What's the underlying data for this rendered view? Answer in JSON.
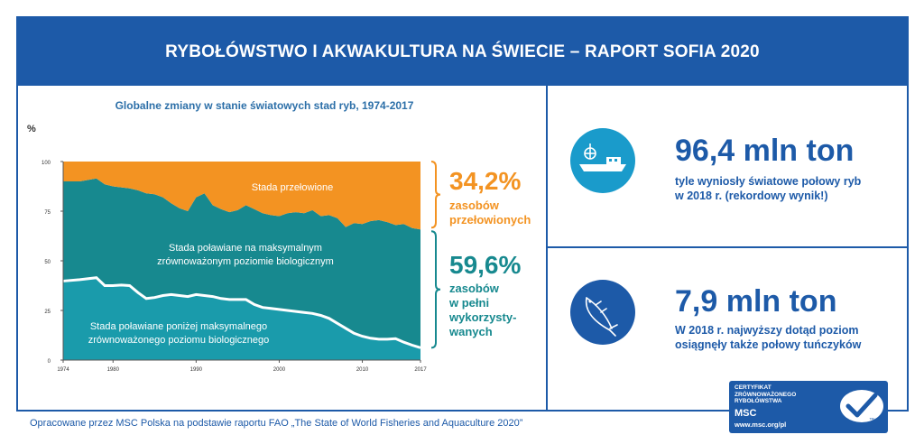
{
  "header": {
    "title": "RYBOŁÓWSTWO I AKWAKULTURA NA ŚWIECIE – RAPORT SOFIA 2020"
  },
  "chart_data": {
    "type": "area",
    "title": "Globalne zmiany w stanie światowych stad ryb, 1974-2017",
    "ylabel": "%",
    "ylim": [
      0,
      100
    ],
    "y_ticks": [
      "100",
      "75",
      "50",
      "25",
      "0"
    ],
    "x_ticks": [
      "1974",
      "1980",
      "1990",
      "2000",
      "2010",
      "2017"
    ],
    "x": [
      1974,
      1976,
      1978,
      1979,
      1980,
      1981,
      1982,
      1983,
      1984,
      1985,
      1986,
      1987,
      1988,
      1989,
      1990,
      1991,
      1992,
      1993,
      1994,
      1995,
      1996,
      1997,
      1998,
      1999,
      2000,
      2001,
      2002,
      2003,
      2004,
      2005,
      2006,
      2007,
      2008,
      2009,
      2010,
      2011,
      2012,
      2013,
      2014,
      2015,
      2016,
      2017
    ],
    "series": [
      {
        "name": "Stada poławiane poniżej maksymalnego zrównoważonego poziomu biologicznego",
        "color": "#1a9bab",
        "values": [
          39.8,
          40.5,
          41.5,
          37.5,
          37.5,
          37.8,
          37.5,
          34,
          31,
          31.5,
          32.5,
          33,
          32.5,
          32,
          33,
          32.5,
          32,
          31,
          30.5,
          30.5,
          30.5,
          28,
          26.5,
          26,
          25.5,
          25,
          24.5,
          24,
          23.5,
          22.5,
          21,
          18.5,
          16,
          13.5,
          12,
          11,
          10.5,
          10.5,
          10.8,
          9,
          7.5,
          6.2
        ]
      },
      {
        "name": "Stada poławiane na maksymalnym zrównoważonym poziomie biologicznym",
        "color": "#17898f",
        "values": [
          50.2,
          49.5,
          50,
          51,
          50,
          49.2,
          49,
          51.5,
          53,
          52,
          49.5,
          46,
          44,
          43,
          49,
          51.5,
          46,
          45,
          44,
          45,
          47.5,
          48,
          47.5,
          47,
          47,
          49,
          50,
          50,
          52,
          50,
          52,
          53,
          51,
          55.5,
          56.5,
          59,
          60,
          59,
          57.2,
          59.5,
          59,
          59.6
        ]
      },
      {
        "name": "Stada przełowione",
        "color": "#f39322",
        "values": [
          10,
          10,
          8.5,
          11.5,
          12.5,
          13,
          13.5,
          14.5,
          16,
          16.5,
          18,
          21,
          23.5,
          25,
          18,
          16,
          22,
          24,
          25.5,
          24.5,
          22,
          24,
          26,
          27,
          27.5,
          26,
          25.5,
          26,
          24.5,
          27.5,
          27,
          28.5,
          33,
          31,
          31.5,
          30,
          29.5,
          30.5,
          32,
          31.5,
          33.5,
          34.2
        ]
      }
    ],
    "area_labels": {
      "over": "Stada przełowione",
      "max_line1": "Stada poławiane na maksymalnym",
      "max_line2": "zrównoważonym poziomie biologicznym",
      "under_line1": "Stada poławiane poniżej maksymalnego",
      "under_line2": "zrównoważonego poziomu biologicznego"
    },
    "callouts": [
      {
        "value": "34,2%",
        "line1": "zasobów",
        "line2": "przełowionych",
        "color": "#f39322"
      },
      {
        "value": "59,6%",
        "line1": "zasobów",
        "line2": "w pełni",
        "line3": "wykorzysty-",
        "line4": "wanych",
        "color": "#17898f"
      }
    ],
    "grid": false
  },
  "stats": [
    {
      "value": "96,4 mln ton",
      "desc_line1": "tyle wyniosły światowe połowy ryb",
      "desc_line2": "w 2018 r. (rekordowy wynik!)",
      "icon": "fishing-boat-icon",
      "circle_color": "#1a9bcb"
    },
    {
      "value": "7,9 mln ton",
      "desc_line1": "W 2018 r. najwyższy dotąd poziom",
      "desc_line2": "osiągnęły także połowy tuńczyków",
      "icon": "tuna-fish-icon",
      "circle_color": "#1d5aa8"
    }
  ],
  "footer": {
    "text": "Opracowane przez MSC Polska na podstawie raportu FAO „The State of World Fisheries and Aquaculture 2020”"
  },
  "msc_badge": {
    "line1": "CERTYFIKAT",
    "line2": "ZRÓWNOWAŻONEGO",
    "line3": "RYBOŁÓWSTWA",
    "brand": "MSC",
    "url": "www.msc.org/pl",
    "tm": "™"
  }
}
